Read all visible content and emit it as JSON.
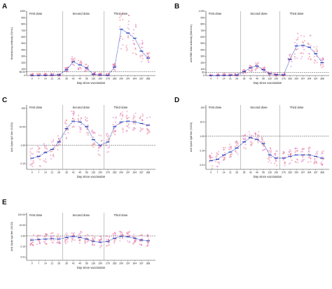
{
  "chart_data": [
    {
      "panel": "A",
      "type": "scatter",
      "scale": "linear",
      "ylabel": "Neutralizing antibody (IU/mL)",
      "xlabel": "Day since vaccination",
      "stages": [
        "First dose",
        "Second dose",
        "Third dose"
      ],
      "x": [
        "0",
        "7",
        "14",
        "21",
        "28",
        "35",
        "42",
        "49",
        "56",
        "130",
        "190",
        "276",
        "283",
        "290",
        "297",
        "304",
        "337",
        "368"
      ],
      "yticks": [
        "0",
        "58.00",
        "100",
        "200",
        "300",
        "400",
        "500",
        "600",
        "700",
        "800",
        "900",
        "1000"
      ],
      "ylim": [
        0,
        1000
      ],
      "threshold": 58,
      "geomean": [
        2,
        3,
        5,
        7,
        12,
        90,
        215,
        165,
        120,
        20,
        10,
        5,
        130,
        720,
        660,
        580,
        380,
        270
      ]
    },
    {
      "panel": "B",
      "type": "scatter",
      "scale": "linear",
      "ylabel": "Anti-RBD total antibody (BAU/mL)",
      "xlabel": "Day since vaccination",
      "stages": [
        "First dose",
        "Second dose",
        "Third dose"
      ],
      "x": [
        "0",
        "7",
        "14",
        "21",
        "28",
        "35",
        "42",
        "49",
        "56",
        "130",
        "190",
        "276",
        "283",
        "290",
        "297",
        "304",
        "337",
        "368"
      ],
      "yticks": [
        "0",
        "50",
        "100",
        "200",
        "300",
        "400",
        "500",
        "600",
        "700",
        "800",
        "900",
        "1,000"
      ],
      "ylim": [
        0,
        1000
      ],
      "threshold": 50,
      "geomean": [
        1,
        2,
        3,
        5,
        10,
        60,
        120,
        150,
        90,
        30,
        15,
        10,
        250,
        460,
        470,
        440,
        340,
        200
      ]
    },
    {
      "panel": "C",
      "type": "scatter",
      "scale": "log",
      "ylabel": "Anti-Spike IgG titer (S/CO)",
      "xlabel": "Day since vaccination",
      "stages": [
        "First dose",
        "Second dose",
        "Third dose"
      ],
      "x": [
        "0",
        "7",
        "14",
        "21",
        "28",
        "35",
        "42",
        "49",
        "56",
        "130",
        "190",
        "276",
        "283",
        "290",
        "297",
        "304",
        "337",
        "368"
      ],
      "yticks": [
        "0.10",
        "1.00",
        "10.00",
        "100"
      ],
      "ylim": [
        0.05,
        150
      ],
      "threshold": 1,
      "geomean": [
        0.2,
        0.25,
        0.4,
        0.6,
        1.5,
        8,
        20,
        18,
        10,
        2,
        1,
        1.5,
        10,
        18,
        20,
        18,
        15,
        12
      ]
    },
    {
      "panel": "D",
      "type": "scatter",
      "scale": "log",
      "ylabel": "Anti-Spike IgM titer (S/CO)",
      "xlabel": "Day since vaccination",
      "stages": [
        "First dose",
        "Second dose",
        "Third dose"
      ],
      "x": [
        "0",
        "7",
        "14",
        "21",
        "28",
        "35",
        "42",
        "49",
        "56",
        "130",
        "190",
        "276",
        "283",
        "290",
        "297",
        "304",
        "337",
        "368"
      ],
      "yticks": [
        "0.01",
        "0.10",
        "1.00",
        "10.0",
        "100"
      ],
      "ylim": [
        0.005,
        150
      ],
      "threshold": 1,
      "geomean": [
        0.02,
        0.025,
        0.05,
        0.08,
        0.15,
        0.4,
        0.8,
        0.6,
        0.3,
        0.05,
        0.03,
        0.03,
        0.04,
        0.05,
        0.05,
        0.05,
        0.04,
        0.03
      ]
    },
    {
      "panel": "E",
      "type": "scatter",
      "scale": "log",
      "ylabel": "Anti-Spike IgA titer (S/CO)",
      "xlabel": "Day since vaccination",
      "stages": [
        "First dose",
        "Second dose",
        "Third dose"
      ],
      "x": [
        "0",
        "7",
        "14",
        "21",
        "28",
        "35",
        "42",
        "49",
        "56",
        "130",
        "190",
        "276",
        "283",
        "290",
        "297",
        "304",
        "337",
        "368"
      ],
      "yticks": [
        "0.01",
        "0.10",
        "1.00",
        "10.00",
        "100.00"
      ],
      "ylim": [
        0.005,
        150
      ],
      "threshold": 1,
      "geomean": [
        0.4,
        0.45,
        0.5,
        0.55,
        0.5,
        0.7,
        0.9,
        0.7,
        0.5,
        0.3,
        0.25,
        0.3,
        0.6,
        0.9,
        0.8,
        0.6,
        0.4,
        0.35
      ]
    }
  ],
  "colors": {
    "mean": "#1f3fbf",
    "pointsA": "#e64a5a",
    "pointsB": "#d35bbf",
    "axis": "#333333",
    "threshold": "#222222"
  }
}
